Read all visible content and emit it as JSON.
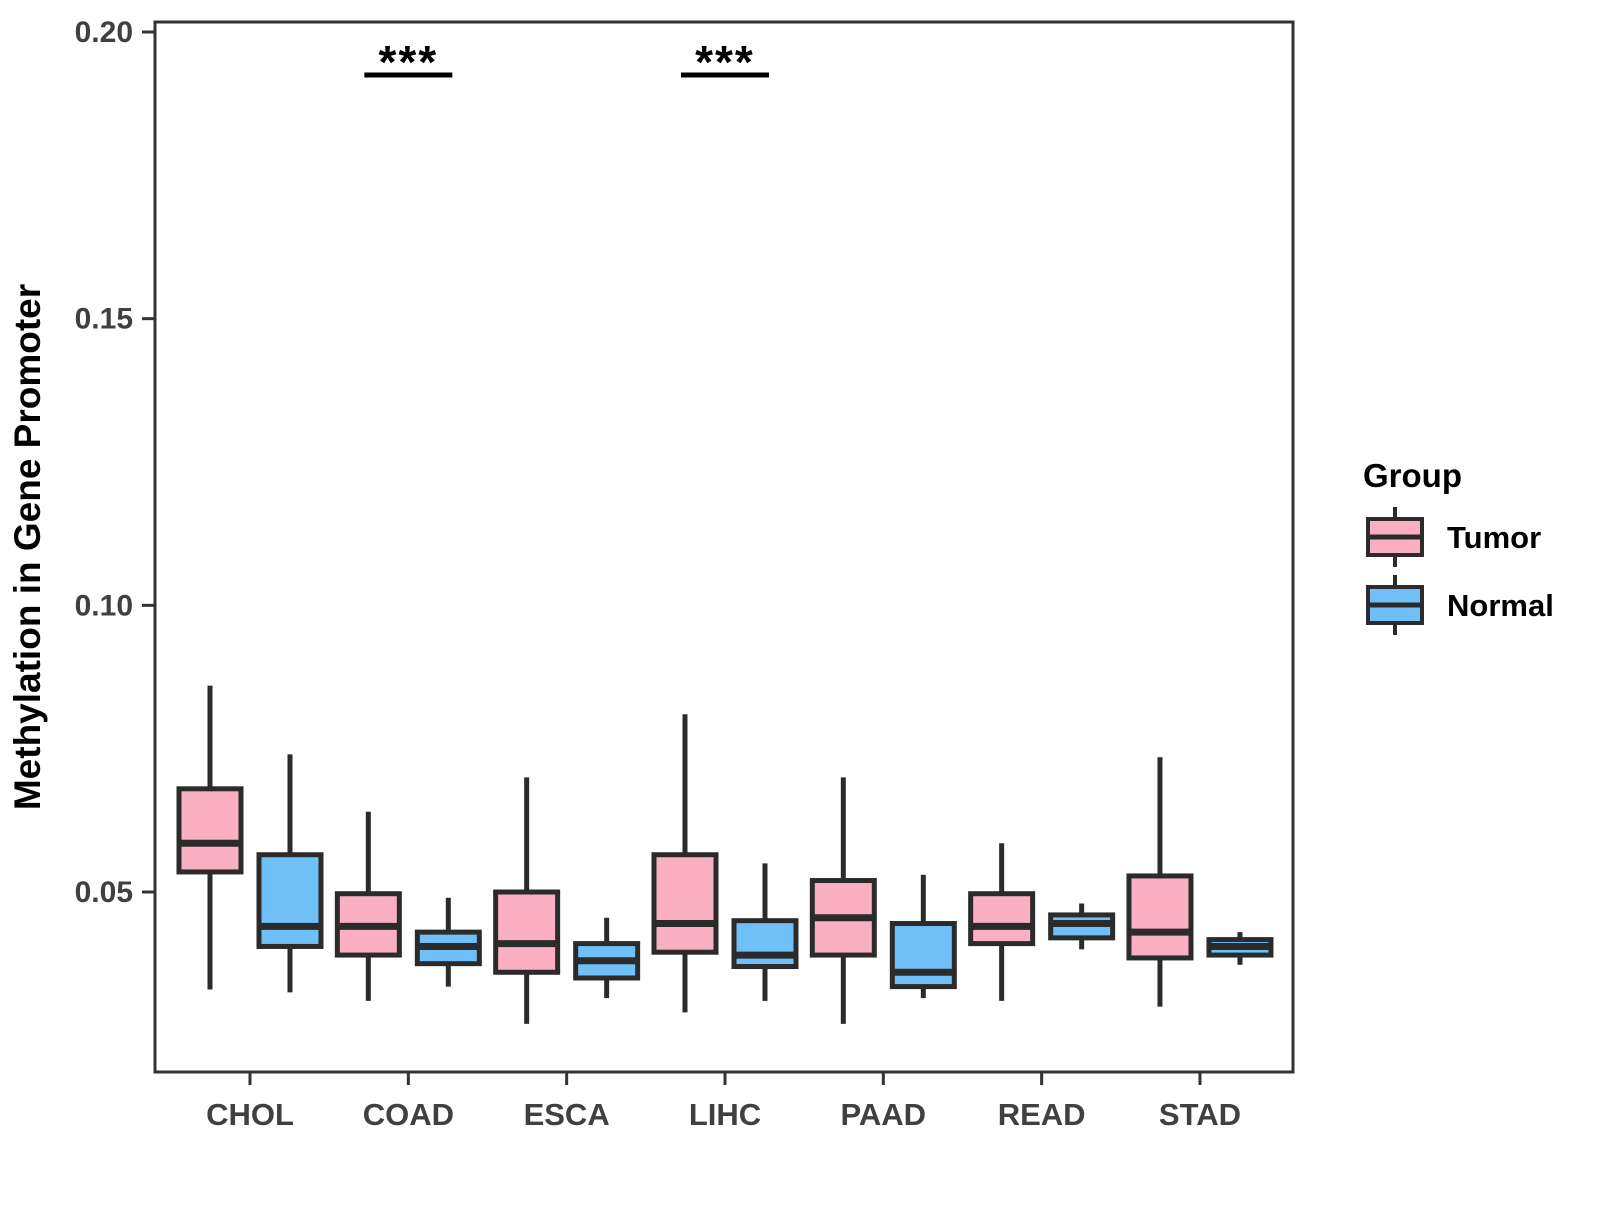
{
  "figure": {
    "background": "#FFFFFF"
  },
  "colors": {
    "tumor_fill": "#FAAFC2",
    "normal_fill": "#70BFF7",
    "box_stroke": "#2B2B2B",
    "axis_line": "#333333",
    "tick_label": "#404040",
    "annotation": "#000000",
    "title_text": "#000000"
  },
  "chart_data": {
    "type": "grouped_boxplot",
    "title": "",
    "xlabel": "",
    "ylabel": "Methylation in Gene Promoter",
    "grid": false,
    "panel_border": true,
    "categories": [
      "CHOL",
      "COAD",
      "ESCA",
      "LIHC",
      "PAAD",
      "READ",
      "STAD"
    ],
    "y_axis": {
      "ylim": [
        0.019,
        0.202
      ],
      "ticks": [
        {
          "value": 0.05,
          "label": "0.05"
        },
        {
          "value": 0.1,
          "label": "0.10"
        },
        {
          "value": 0.15,
          "label": "0.15"
        },
        {
          "value": 0.2,
          "label": "0.20"
        }
      ]
    },
    "legend": {
      "title": "Group",
      "position": "right",
      "entries": [
        {
          "label": "Tumor",
          "color": "#FAAFC2"
        },
        {
          "label": "Normal",
          "color": "#70BFF7"
        }
      ]
    },
    "series": [
      {
        "name": "Tumor",
        "color": "#FAAFC2",
        "boxes": [
          {
            "category": "CHOL",
            "whisker_low": 0.033,
            "q1": 0.0535,
            "median": 0.0585,
            "q3": 0.068,
            "whisker_high": 0.086
          },
          {
            "category": "COAD",
            "whisker_low": 0.031,
            "q1": 0.039,
            "median": 0.044,
            "q3": 0.0497,
            "whisker_high": 0.064
          },
          {
            "category": "ESCA",
            "whisker_low": 0.027,
            "q1": 0.036,
            "median": 0.041,
            "q3": 0.05,
            "whisker_high": 0.07
          },
          {
            "category": "LIHC",
            "whisker_low": 0.029,
            "q1": 0.0395,
            "median": 0.0445,
            "q3": 0.0565,
            "whisker_high": 0.081
          },
          {
            "category": "PAAD",
            "whisker_low": 0.027,
            "q1": 0.039,
            "median": 0.0455,
            "q3": 0.052,
            "whisker_high": 0.07
          },
          {
            "category": "READ",
            "whisker_low": 0.031,
            "q1": 0.041,
            "median": 0.044,
            "q3": 0.0497,
            "whisker_high": 0.0585
          },
          {
            "category": "STAD",
            "whisker_low": 0.03,
            "q1": 0.0385,
            "median": 0.043,
            "q3": 0.0528,
            "whisker_high": 0.0735
          }
        ]
      },
      {
        "name": "Normal",
        "color": "#70BFF7",
        "boxes": [
          {
            "category": "CHOL",
            "whisker_low": 0.0325,
            "q1": 0.0405,
            "median": 0.044,
            "q3": 0.0565,
            "whisker_high": 0.074
          },
          {
            "category": "COAD",
            "whisker_low": 0.0335,
            "q1": 0.0375,
            "median": 0.0405,
            "q3": 0.043,
            "whisker_high": 0.049
          },
          {
            "category": "ESCA",
            "whisker_low": 0.0315,
            "q1": 0.035,
            "median": 0.038,
            "q3": 0.041,
            "whisker_high": 0.0455
          },
          {
            "category": "LIHC",
            "whisker_low": 0.031,
            "q1": 0.037,
            "median": 0.039,
            "q3": 0.045,
            "whisker_high": 0.055
          },
          {
            "category": "PAAD",
            "whisker_low": 0.0315,
            "q1": 0.0335,
            "median": 0.036,
            "q3": 0.0445,
            "whisker_high": 0.053
          },
          {
            "category": "READ",
            "whisker_low": 0.04,
            "q1": 0.042,
            "median": 0.0445,
            "q3": 0.046,
            "whisker_high": 0.048
          },
          {
            "category": "STAD",
            "whisker_low": 0.0373,
            "q1": 0.039,
            "median": 0.0405,
            "q3": 0.0417,
            "whisker_high": 0.043
          }
        ]
      }
    ],
    "annotations": [
      {
        "category": "COAD",
        "label": "***",
        "y": 0.1925
      },
      {
        "category": "LIHC",
        "label": "***",
        "y": 0.1925
      }
    ]
  }
}
